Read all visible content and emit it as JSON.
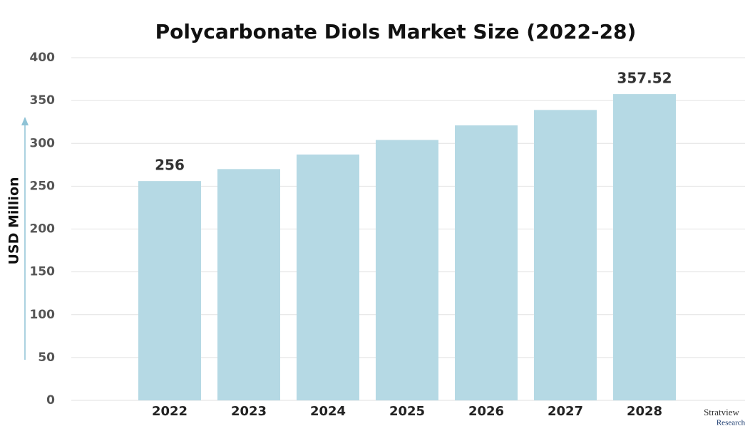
{
  "chart_data": {
    "type": "bar",
    "title": "Polycarbonate Diols Market Size (2022-28)",
    "y_label": "USD Million",
    "categories": [
      "2022",
      "2023",
      "2024",
      "2025",
      "2026",
      "2027",
      "2028"
    ],
    "values": [
      256,
      270,
      287,
      304,
      321,
      339,
      357.52
    ],
    "value_labels": [
      256,
      null,
      null,
      null,
      null,
      null,
      357.52
    ],
    "color": "#b5d9e4",
    "ylim": [
      0,
      400
    ],
    "yticks": [
      0,
      50,
      100,
      150,
      200,
      250,
      300,
      350,
      400
    ],
    "grid": true
  },
  "logo": {
    "name": "Stratview",
    "sub": "Research"
  }
}
